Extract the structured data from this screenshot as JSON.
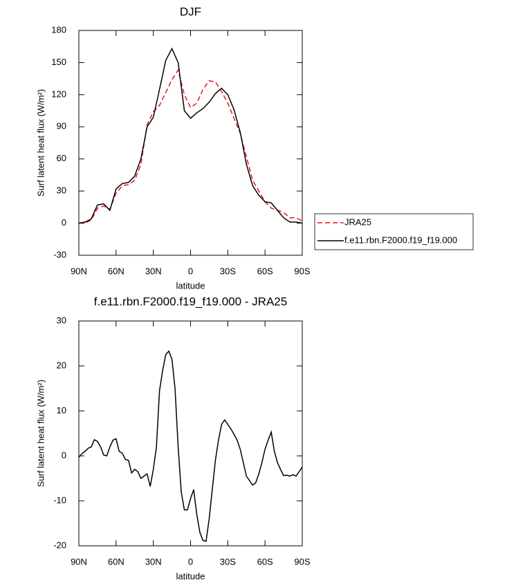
{
  "chart_data": [
    {
      "type": "line",
      "title": "DJF",
      "x_label": "latitude",
      "y_label": "Surf latent heat flux (W/m²)",
      "x": [
        90,
        85,
        80,
        75,
        70,
        65,
        60,
        55,
        50,
        45,
        40,
        35,
        30,
        25,
        20,
        15,
        10,
        5,
        0,
        -5,
        -10,
        -15,
        -20,
        -25,
        -30,
        -35,
        -40,
        -45,
        -50,
        -55,
        -60,
        -65,
        -70,
        -75,
        -80,
        -85,
        -90
      ],
      "series": [
        {
          "name": "JRA25",
          "color": "#e8141c",
          "style": "dashed",
          "values": [
            0,
            0,
            3,
            14,
            16,
            13,
            28,
            35,
            36,
            40,
            55,
            92,
            104,
            110,
            122,
            134,
            143,
            120,
            108,
            112,
            125,
            133,
            132,
            123,
            112,
            98,
            84,
            62,
            40,
            30,
            20,
            14,
            12,
            10,
            5,
            5,
            2
          ]
        },
        {
          "name": "f.e11.rbn.F2000.f19_f19.000",
          "color": "#000000",
          "style": "solid",
          "values": [
            0,
            1,
            4,
            17,
            18,
            12,
            32,
            37,
            38,
            44,
            60,
            90,
            99,
            125,
            152,
            163,
            150,
            105,
            98,
            103,
            107,
            113,
            121,
            126,
            120,
            106,
            85,
            55,
            35,
            26,
            20,
            19,
            12,
            5,
            1,
            1,
            0
          ]
        }
      ],
      "xlim": [
        90,
        -90
      ],
      "xticks": [
        {
          "value": 90,
          "label": "90N"
        },
        {
          "value": 60,
          "label": "60N"
        },
        {
          "value": 30,
          "label": "30N"
        },
        0,
        {
          "value": -30,
          "label": "30S"
        },
        {
          "value": -60,
          "label": "60S"
        },
        {
          "value": -90,
          "label": "90S"
        }
      ],
      "ylim": [
        -30,
        180
      ],
      "yticks": [
        -30,
        0,
        30,
        60,
        90,
        120,
        150,
        180
      ],
      "legend": "right"
    },
    {
      "type": "line",
      "title": "f.e11.rbn.F2000.f19_f19.000 - JRA25",
      "x_label": "latitude",
      "y_label": "Surf latent heat flux (W/m²)",
      "x": [
        90,
        87.5,
        85,
        82.5,
        80,
        77.5,
        75,
        72.5,
        70,
        67.5,
        65,
        62.5,
        60,
        57.5,
        55,
        52.5,
        50,
        47.5,
        45,
        42.5,
        40,
        37.5,
        35,
        32.5,
        30,
        27.5,
        25,
        22.5,
        20,
        17.5,
        15,
        12.5,
        10,
        7.5,
        5,
        2.5,
        0,
        -2.5,
        -5,
        -7.5,
        -10,
        -12.5,
        -15,
        -17.5,
        -20,
        -22.5,
        -25,
        -27.5,
        -30,
        -32.5,
        -35,
        -37.5,
        -40,
        -42.5,
        -45,
        -47.5,
        -50,
        -52.5,
        -55,
        -57.5,
        -60,
        -62.5,
        -65,
        -67.5,
        -70,
        -72.5,
        -75,
        -77.5,
        -80,
        -82.5,
        -85,
        -87.5,
        -90
      ],
      "values": [
        -0.3,
        0.5,
        1,
        1.7,
        2,
        3.6,
        3.2,
        2,
        0.2,
        0,
        2,
        3.5,
        3.8,
        1,
        0.6,
        -0.8,
        -1,
        -3.8,
        -3,
        -3.5,
        -5,
        -4.5,
        -4,
        -6.8,
        -3,
        2,
        14.5,
        19,
        22.5,
        23.3,
        21.5,
        15,
        2,
        -8,
        -12,
        -12,
        -9.5,
        -7.5,
        -13,
        -17,
        -18.8,
        -19,
        -14,
        -7.5,
        -1,
        3.5,
        7,
        8,
        7,
        6,
        4.8,
        3.5,
        1.5,
        -1.5,
        -4.5,
        -5.5,
        -6.5,
        -6,
        -4,
        -1.5,
        1.5,
        3.5,
        5.3,
        1,
        -1.5,
        -3,
        -4.4,
        -4.3,
        -4.5,
        -4.2,
        -4.5,
        -3.5,
        -2.5
      ],
      "color": "#000000",
      "xlim": [
        90,
        -90
      ],
      "xticks": [
        {
          "value": 90,
          "label": "90N"
        },
        {
          "value": 60,
          "label": "60N"
        },
        {
          "value": 30,
          "label": "30N"
        },
        0,
        {
          "value": -30,
          "label": "30S"
        },
        {
          "value": -60,
          "label": "60S"
        },
        {
          "value": -90,
          "label": "90S"
        }
      ],
      "ylim": [
        -20,
        30
      ],
      "yticks": [
        -20,
        -10,
        0,
        10,
        20,
        30
      ]
    }
  ]
}
